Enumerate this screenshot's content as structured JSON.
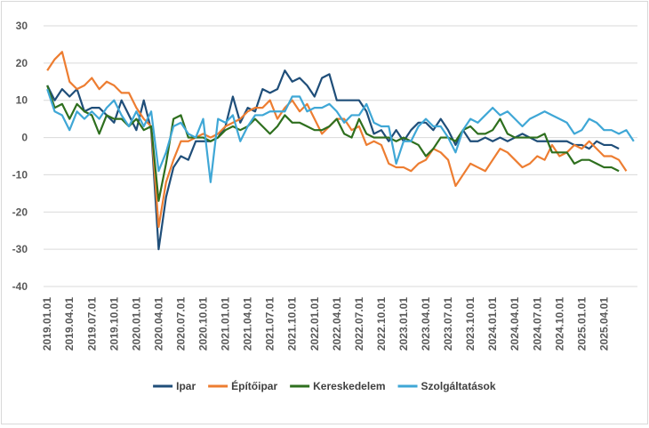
{
  "chart_data": {
    "type": "line",
    "title": "",
    "xlabel": "",
    "ylabel": "",
    "ylim": [
      -40,
      30
    ],
    "yticks": [
      -40,
      -30,
      -20,
      -10,
      0,
      10,
      20,
      30
    ],
    "grid": true,
    "legend_position": "bottom",
    "x_tick_labels": [
      "2019.01.01",
      "2019.04.01",
      "2019.07.01",
      "2019.10.01",
      "2020.01.01",
      "2020.04.01",
      "2020.07.01",
      "2020.10.01",
      "2021.01.01",
      "2021.04.01",
      "2021.07.01",
      "2021.10.01",
      "2022.01.01",
      "2022.04.01",
      "2022.07.01",
      "2022.10.01",
      "2023.01.01",
      "2023.04.01",
      "2023.07.01",
      "2023.10.01",
      "2024.01.01",
      "2024.04.01",
      "2024.07.01",
      "2024.10.01",
      "2025.01.01",
      "2025.04.01"
    ],
    "x_start": "2019-01",
    "series": [
      {
        "name": "Ipar",
        "color": "#1f4e79",
        "values": [
          14,
          10,
          13,
          11,
          13,
          7,
          8,
          8,
          6,
          4,
          10,
          6,
          2,
          10,
          2,
          -30,
          -16,
          -8,
          -5,
          -6,
          -1,
          -1,
          -1,
          0,
          3,
          11,
          4,
          8,
          7,
          13,
          12,
          13,
          18,
          15,
          16,
          14,
          11,
          16,
          17,
          10,
          10,
          10,
          10,
          7,
          1,
          2,
          -1,
          2,
          -1,
          2,
          4,
          4,
          2,
          5,
          2,
          -2,
          2,
          -1,
          -1,
          0,
          -1,
          0,
          -1,
          0,
          1,
          0,
          -1,
          -1,
          -1,
          -1,
          -1,
          -2,
          -2,
          -3,
          -1,
          -2,
          -2,
          -3
        ]
      },
      {
        "name": "Építőipar",
        "color": "#ed7d31",
        "values": [
          18,
          21,
          23,
          15,
          13,
          14,
          16,
          13,
          15,
          14,
          12,
          12,
          8,
          5,
          3,
          -24,
          -12,
          -6,
          -1,
          -1,
          0,
          1,
          0,
          1,
          3,
          4,
          5,
          7,
          8,
          8,
          10,
          5,
          8,
          10,
          7,
          9,
          5,
          1,
          3,
          5,
          5,
          2,
          3,
          -2,
          -1,
          -2,
          -7,
          -8,
          -8,
          -9,
          -7,
          -6,
          -3,
          -4,
          -6,
          -13,
          -10,
          -7,
          -8,
          -9,
          -6,
          -3,
          -4,
          -6,
          -8,
          -7,
          -5,
          -6,
          -2,
          -5,
          -4,
          -2,
          -3,
          -1,
          -3,
          -5,
          -5,
          -6,
          -9
        ]
      },
      {
        "name": "Kereskedelem",
        "color": "#2e6f1e",
        "values": [
          14,
          8,
          9,
          5,
          9,
          7,
          6,
          1,
          6,
          5,
          5,
          3,
          5,
          2,
          3,
          -17,
          -7,
          5,
          6,
          0,
          0,
          0,
          -1,
          0,
          2,
          3,
          2,
          3,
          5,
          3,
          1,
          3,
          6,
          4,
          4,
          3,
          2,
          2,
          3,
          5,
          1,
          0,
          5,
          1,
          0,
          0,
          0,
          -1,
          0,
          -1,
          -2,
          -5,
          -3,
          0,
          0,
          -1,
          2,
          3,
          1,
          1,
          2,
          5,
          1,
          0,
          0,
          0,
          0,
          1,
          -4,
          -4,
          -4,
          -7,
          -6,
          -6,
          -7,
          -8,
          -8,
          -9
        ]
      },
      {
        "name": "Szolgáltatások",
        "color": "#3fa7d6",
        "values": [
          13,
          7,
          6,
          2,
          7,
          5,
          7,
          5,
          8,
          10,
          6,
          3,
          7,
          3,
          7,
          -9,
          -4,
          3,
          4,
          1,
          0,
          5,
          -12,
          5,
          4,
          6,
          -1,
          3,
          6,
          6,
          7,
          7,
          7,
          11,
          11,
          7,
          8,
          8,
          9,
          7,
          4,
          6,
          6,
          9,
          4,
          3,
          3,
          -7,
          -1,
          -1,
          3,
          5,
          3,
          3,
          0,
          -4,
          2,
          5,
          4,
          6,
          8,
          6,
          7,
          5,
          3,
          5,
          6,
          7,
          6,
          5,
          4,
          1,
          2,
          5,
          4,
          2,
          2,
          1,
          2,
          -1
        ]
      }
    ]
  }
}
